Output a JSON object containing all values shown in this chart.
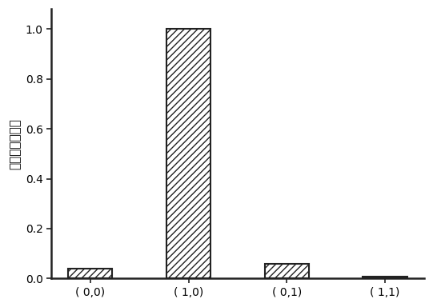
{
  "categories": [
    "( 0,0)",
    "( 1,0)",
    "( 0,1)",
    "( 1,1)"
  ],
  "values": [
    0.04,
    1.0,
    0.06,
    0.008
  ],
  "bar_color": "white",
  "bar_edgecolor": "#222222",
  "hatch": "////",
  "ylabel": "归一化荧光强度",
  "ylim": [
    0,
    1.08
  ],
  "yticks": [
    0.0,
    0.2,
    0.4,
    0.6,
    0.8,
    1.0
  ],
  "bar_width": 0.45,
  "figsize": [
    5.41,
    3.84
  ],
  "dpi": 100,
  "background_color": "#ffffff",
  "spine_linewidth": 1.8,
  "tick_fontsize": 10,
  "ylabel_fontsize": 11
}
